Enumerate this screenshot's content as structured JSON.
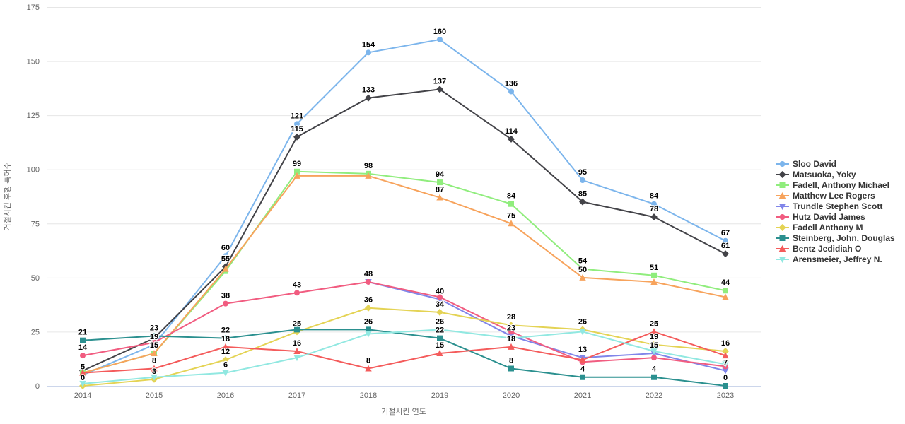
{
  "chart_data": {
    "type": "line",
    "title": "",
    "xlabel": "거절시킨 연도",
    "ylabel": "거절시킨 후행 특허수",
    "x_categories": [
      "2014",
      "2015",
      "2016",
      "2017",
      "2018",
      "2019",
      "2020",
      "2021",
      "2022",
      "2023"
    ],
    "y_ticks": [
      0,
      25,
      50,
      75,
      100,
      125,
      150,
      175
    ],
    "ylim": [
      0,
      175
    ],
    "grid": true,
    "legend_position": "right",
    "series": [
      {
        "name": "Sloo David",
        "color": "#7cb5ec",
        "marker": "circle",
        "values": [
          5,
          19,
          60,
          121,
          154,
          160,
          136,
          95,
          84,
          67
        ]
      },
      {
        "name": "Matsuoka, Yoky",
        "color": "#434348",
        "marker": "diamond",
        "values": [
          7,
          22,
          55,
          115,
          133,
          137,
          114,
          85,
          78,
          61
        ]
      },
      {
        "name": "Fadell, Anthony Michael",
        "color": "#90ed7d",
        "marker": "square",
        "values": [
          6,
          15,
          53,
          99,
          98,
          94,
          84,
          54,
          51,
          44
        ]
      },
      {
        "name": "Matthew Lee Rogers",
        "color": "#f7a35c",
        "marker": "triangle",
        "values": [
          6,
          15,
          54,
          97,
          97,
          87,
          75,
          50,
          48,
          41
        ]
      },
      {
        "name": "Trundle Stephen Scott",
        "color": "#8085e9",
        "marker": "triangle-down",
        "values": [
          null,
          null,
          null,
          null,
          48,
          40,
          23,
          13,
          15,
          7
        ]
      },
      {
        "name": "Hutz David James",
        "color": "#f15c80",
        "marker": "circle",
        "values": [
          14,
          20,
          38,
          43,
          48,
          41,
          25,
          11,
          13,
          9
        ]
      },
      {
        "name": "Fadell Anthony M",
        "color": "#e4d354",
        "marker": "diamond",
        "values": [
          0,
          3,
          12,
          25,
          36,
          34,
          28,
          26,
          19,
          16
        ]
      },
      {
        "name": "Steinberg, John, Douglas",
        "color": "#2b908f",
        "marker": "square",
        "values": [
          21,
          23,
          22,
          26,
          26,
          22,
          8,
          4,
          4,
          0
        ]
      },
      {
        "name": "Bentz Jedidiah O",
        "color": "#f45b5b",
        "marker": "triangle",
        "values": [
          6,
          8,
          18,
          16,
          8,
          15,
          18,
          12,
          25,
          14
        ]
      },
      {
        "name": "Arensmeier, Jeffrey N.",
        "color": "#91e8e1",
        "marker": "triangle-down",
        "values": [
          1,
          4,
          6,
          13,
          24,
          26,
          22,
          25,
          16,
          10
        ]
      }
    ]
  }
}
